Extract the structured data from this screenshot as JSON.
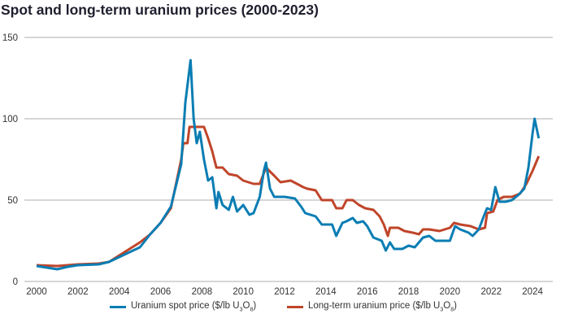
{
  "chart_data": {
    "type": "line",
    "title": "Spot and long-term uranium prices (2000-2023)",
    "xlabel": "",
    "ylabel": "",
    "xlim": [
      2000,
      2024.8
    ],
    "ylim": [
      0,
      150
    ],
    "grid": true,
    "legend_position": "bottom",
    "x_ticks": [
      "2000",
      "2002",
      "2004",
      "2006",
      "2008",
      "2010",
      "2012",
      "2014",
      "2016",
      "2018",
      "2020",
      "2022",
      "2024"
    ],
    "y_ticks": [
      "0",
      "50",
      "100",
      "150"
    ],
    "series": [
      {
        "name": "Uranium spot price ($/lb U3O8)",
        "legend_main": "Uranium spot price ($/lb U",
        "legend_sub1": "3",
        "legend_mid": "O",
        "legend_sub2": "8",
        "legend_end": ")",
        "color": "#0a7db3",
        "points": [
          [
            2000,
            9.5
          ],
          [
            2000.5,
            8.5
          ],
          [
            2001,
            7.5
          ],
          [
            2001.5,
            9
          ],
          [
            2002,
            10
          ],
          [
            2003,
            10.5
          ],
          [
            2003.5,
            12
          ],
          [
            2004,
            15
          ],
          [
            2004.5,
            18
          ],
          [
            2005,
            21
          ],
          [
            2005.5,
            29
          ],
          [
            2006,
            36
          ],
          [
            2006.5,
            46
          ],
          [
            2007,
            72
          ],
          [
            2007.2,
            110
          ],
          [
            2007.45,
            136
          ],
          [
            2007.6,
            100
          ],
          [
            2007.75,
            85
          ],
          [
            2007.9,
            92
          ],
          [
            2008.1,
            75
          ],
          [
            2008.3,
            62
          ],
          [
            2008.5,
            64
          ],
          [
            2008.7,
            45
          ],
          [
            2008.8,
            55
          ],
          [
            2009,
            47
          ],
          [
            2009.3,
            44
          ],
          [
            2009.5,
            52
          ],
          [
            2009.7,
            43
          ],
          [
            2010,
            47
          ],
          [
            2010.3,
            41
          ],
          [
            2010.5,
            42
          ],
          [
            2010.8,
            52
          ],
          [
            2011.0,
            68
          ],
          [
            2011.1,
            73
          ],
          [
            2011.3,
            57
          ],
          [
            2011.5,
            52
          ],
          [
            2011.8,
            52
          ],
          [
            2012,
            52
          ],
          [
            2012.5,
            51
          ],
          [
            2012.8,
            46
          ],
          [
            2013,
            42
          ],
          [
            2013.5,
            40
          ],
          [
            2013.8,
            35
          ],
          [
            2014,
            35
          ],
          [
            2014.3,
            35
          ],
          [
            2014.5,
            28
          ],
          [
            2014.8,
            36
          ],
          [
            2015,
            37
          ],
          [
            2015.3,
            39
          ],
          [
            2015.5,
            36
          ],
          [
            2015.8,
            37
          ],
          [
            2016,
            34
          ],
          [
            2016.3,
            27
          ],
          [
            2016.7,
            25
          ],
          [
            2016.9,
            19
          ],
          [
            2017.1,
            24
          ],
          [
            2017.3,
            20
          ],
          [
            2017.7,
            20
          ],
          [
            2018,
            22
          ],
          [
            2018.3,
            21
          ],
          [
            2018.7,
            27
          ],
          [
            2019,
            28
          ],
          [
            2019.3,
            25
          ],
          [
            2019.7,
            25
          ],
          [
            2020,
            25
          ],
          [
            2020.25,
            34
          ],
          [
            2020.5,
            32
          ],
          [
            2020.9,
            30
          ],
          [
            2021.1,
            28
          ],
          [
            2021.4,
            32
          ],
          [
            2021.7,
            42
          ],
          [
            2021.8,
            45
          ],
          [
            2022,
            44
          ],
          [
            2022.2,
            58
          ],
          [
            2022.4,
            49
          ],
          [
            2022.7,
            49
          ],
          [
            2023,
            50
          ],
          [
            2023.3,
            53
          ],
          [
            2023.6,
            57
          ],
          [
            2023.8,
            70
          ],
          [
            2024.0,
            91
          ],
          [
            2024.1,
            100
          ],
          [
            2024.3,
            88
          ]
        ]
      },
      {
        "name": "Long-term uranium price ($/lb U3O8)",
        "legend_main": "Long-term uranium price ($/lb U",
        "legend_sub1": "3",
        "legend_mid": "O",
        "legend_sub2": "8",
        "legend_end": ")",
        "color": "#c0452a",
        "points": [
          [
            2000,
            10
          ],
          [
            2001,
            9.5
          ],
          [
            2002,
            10.5
          ],
          [
            2003,
            11
          ],
          [
            2003.5,
            12
          ],
          [
            2004,
            16
          ],
          [
            2004.5,
            20
          ],
          [
            2005,
            24
          ],
          [
            2005.5,
            29
          ],
          [
            2006,
            36
          ],
          [
            2006.5,
            45
          ],
          [
            2007,
            75
          ],
          [
            2007.1,
            85
          ],
          [
            2007.3,
            85
          ],
          [
            2007.4,
            95
          ],
          [
            2008.1,
            95
          ],
          [
            2008.3,
            88
          ],
          [
            2008.5,
            80
          ],
          [
            2008.7,
            70
          ],
          [
            2009,
            70
          ],
          [
            2009.3,
            66
          ],
          [
            2009.7,
            65
          ],
          [
            2010,
            62
          ],
          [
            2010.5,
            60
          ],
          [
            2010.8,
            60
          ],
          [
            2011.1,
            70
          ],
          [
            2011.5,
            65
          ],
          [
            2011.8,
            61
          ],
          [
            2012.3,
            62
          ],
          [
            2012.6,
            60
          ],
          [
            2012.9,
            58
          ],
          [
            2013.1,
            57
          ],
          [
            2013.5,
            56
          ],
          [
            2013.8,
            50
          ],
          [
            2014.3,
            50
          ],
          [
            2014.5,
            45
          ],
          [
            2014.8,
            45
          ],
          [
            2015,
            50
          ],
          [
            2015.3,
            50
          ],
          [
            2015.6,
            47
          ],
          [
            2015.9,
            45
          ],
          [
            2016.3,
            44
          ],
          [
            2016.6,
            40
          ],
          [
            2016.8,
            35
          ],
          [
            2017,
            28
          ],
          [
            2017.1,
            33
          ],
          [
            2017.5,
            33
          ],
          [
            2017.8,
            31
          ],
          [
            2018.2,
            30
          ],
          [
            2018.5,
            29
          ],
          [
            2018.7,
            32
          ],
          [
            2019,
            32
          ],
          [
            2019.5,
            31
          ],
          [
            2020,
            33
          ],
          [
            2020.2,
            36
          ],
          [
            2020.5,
            35
          ],
          [
            2021,
            34
          ],
          [
            2021.4,
            32
          ],
          [
            2021.7,
            33
          ],
          [
            2021.8,
            42
          ],
          [
            2022.1,
            43
          ],
          [
            2022.3,
            50
          ],
          [
            2022.6,
            52
          ],
          [
            2023,
            52
          ],
          [
            2023.4,
            54
          ],
          [
            2023.7,
            60
          ],
          [
            2024,
            68
          ],
          [
            2024.3,
            77
          ]
        ]
      }
    ]
  }
}
